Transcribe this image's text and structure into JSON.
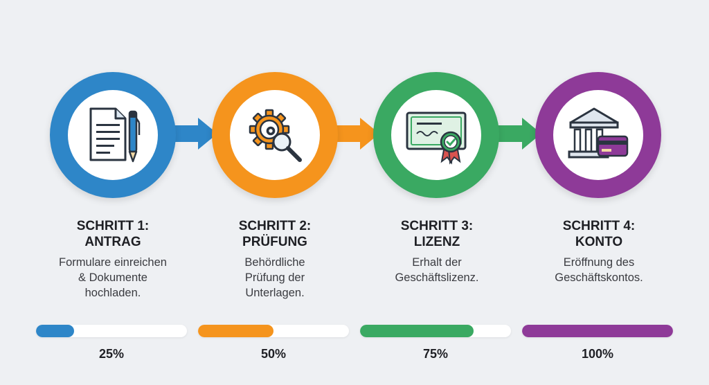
{
  "steps": [
    {
      "title": "SCHRITT 1:\nANTRAG",
      "description": "Formulare einreichen\n& Dokumente\nhochladen.",
      "icon": "document-pen-icon",
      "color": "#2e86c8",
      "progress_label": "25%",
      "progress": 0.25
    },
    {
      "title": "SCHRITT 2:\nPRÜFUNG",
      "description": "Behördliche\nPrüfung der\nUnterlagen.",
      "icon": "gear-magnifier-icon",
      "color": "#f5941d",
      "progress_label": "50%",
      "progress": 0.5
    },
    {
      "title": "SCHRITT 3:\nLIZENZ",
      "description": "Erhalt der\nGeschäftslizenz.",
      "icon": "certificate-icon",
      "color": "#3aa962",
      "progress_label": "75%",
      "progress": 0.75
    },
    {
      "title": "SCHRITT 4:\nKONTO",
      "description": "Eröffnung des\nGeschäftskontos.",
      "icon": "bank-card-icon",
      "color": "#8e3a98",
      "progress_label": "100%",
      "progress": 1.0
    }
  ]
}
